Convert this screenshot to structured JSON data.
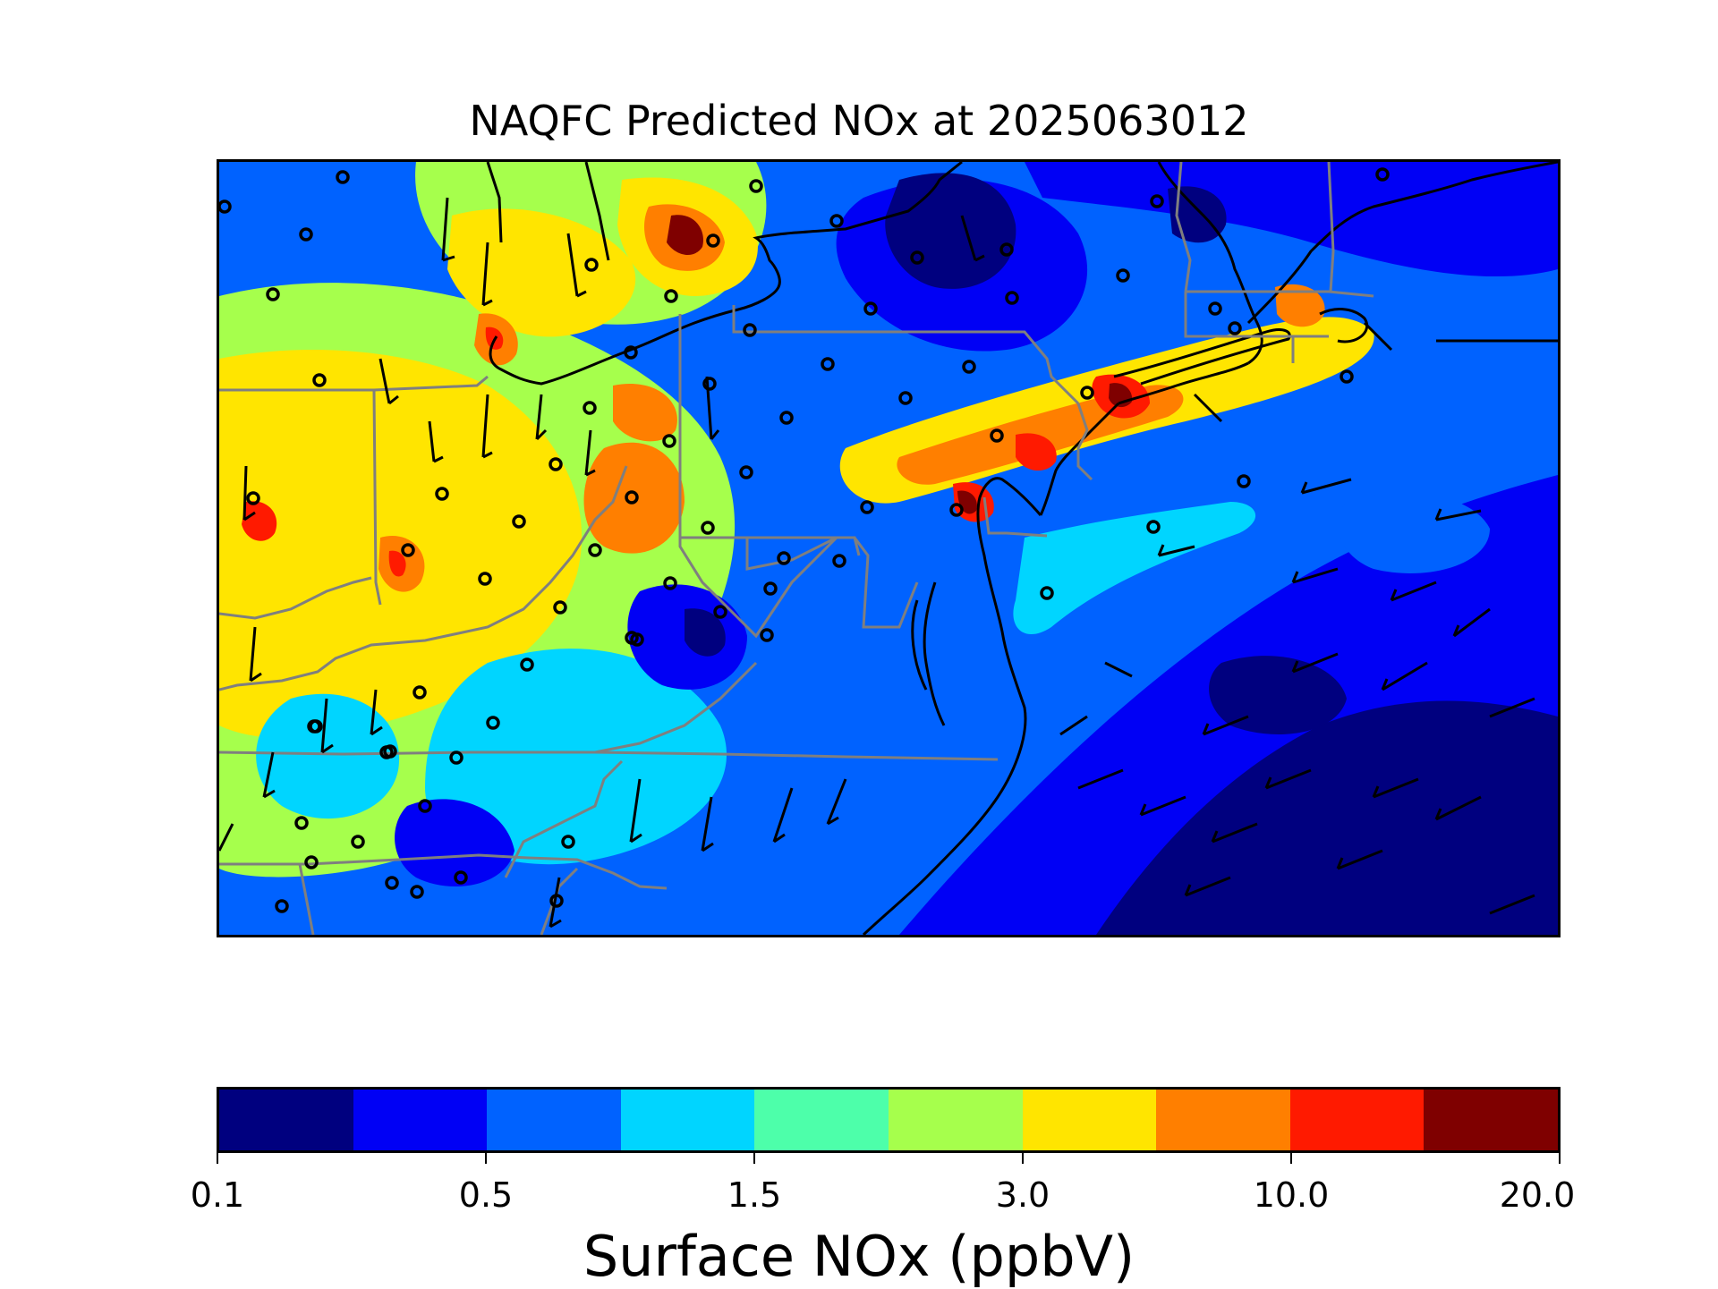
{
  "title": "NAQFC Predicted NOx at 2025063012",
  "colorbar": {
    "label": "Surface NOx (ppbV)",
    "colors": [
      "#00007f",
      "#0000f5",
      "#0062ff",
      "#00d5ff",
      "#4dffaa",
      "#a6ff4c",
      "#ffe500",
      "#ff7f00",
      "#ff1a00",
      "#7f0000"
    ],
    "ticks": [
      "0.1",
      "0.5",
      "1.5",
      "3.0",
      "10.0",
      "20.0"
    ]
  },
  "map": {
    "region": "US Mid-Atlantic / Northeast",
    "background_level_color": "#0062ff",
    "features": [
      "state-borders",
      "coastline",
      "great-lakes-shoreline",
      "wind-barbs",
      "monitoring-sites"
    ]
  }
}
